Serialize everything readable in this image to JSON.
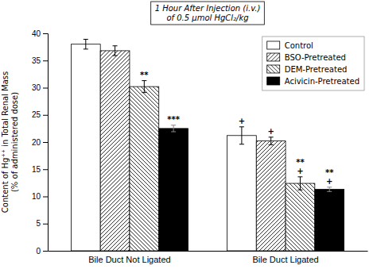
{
  "chart_data": {
    "type": "bar",
    "ylabel": "Content of Hg⁺⁺ in Total Renal Mass\n(% of administered dose)",
    "categories": [
      "Bile Duct Not Ligated",
      "Bile Duct Ligated"
    ],
    "series": [
      {
        "name": "Control",
        "color": "white",
        "values": [
          38.0,
          21.2
        ],
        "errors": [
          0.9,
          1.6
        ],
        "significance": [
          [],
          [
            "+"
          ]
        ]
      },
      {
        "name": "BSO-Pretreated",
        "color": "white",
        "values": [
          36.8,
          20.2
        ],
        "errors": [
          0.9,
          0.7
        ],
        "significance": [
          [],
          [
            "+"
          ]
        ]
      },
      {
        "name": "DEM-Pretreated",
        "color": "white",
        "values": [
          30.2,
          12.4
        ],
        "errors": [
          1.1,
          1.2
        ],
        "significance": [
          [
            "**"
          ],
          [
            "+",
            "**"
          ]
        ]
      },
      {
        "name": "Acivicin-Pretreated",
        "color": "black",
        "values": [
          22.5,
          11.3
        ],
        "errors": [
          0.6,
          0.4
        ],
        "significance": [
          [
            "***"
          ],
          [
            "+",
            "**"
          ]
        ]
      }
    ],
    "ylim": [
      0,
      40
    ],
    "yticks": [
      0,
      5,
      10,
      15,
      20,
      25,
      30,
      35,
      40
    ],
    "annotation": "1 Hour After Injection (i.v.)\nof 0.5 μmol HgCl₂/kg",
    "legend": "upper right"
  }
}
